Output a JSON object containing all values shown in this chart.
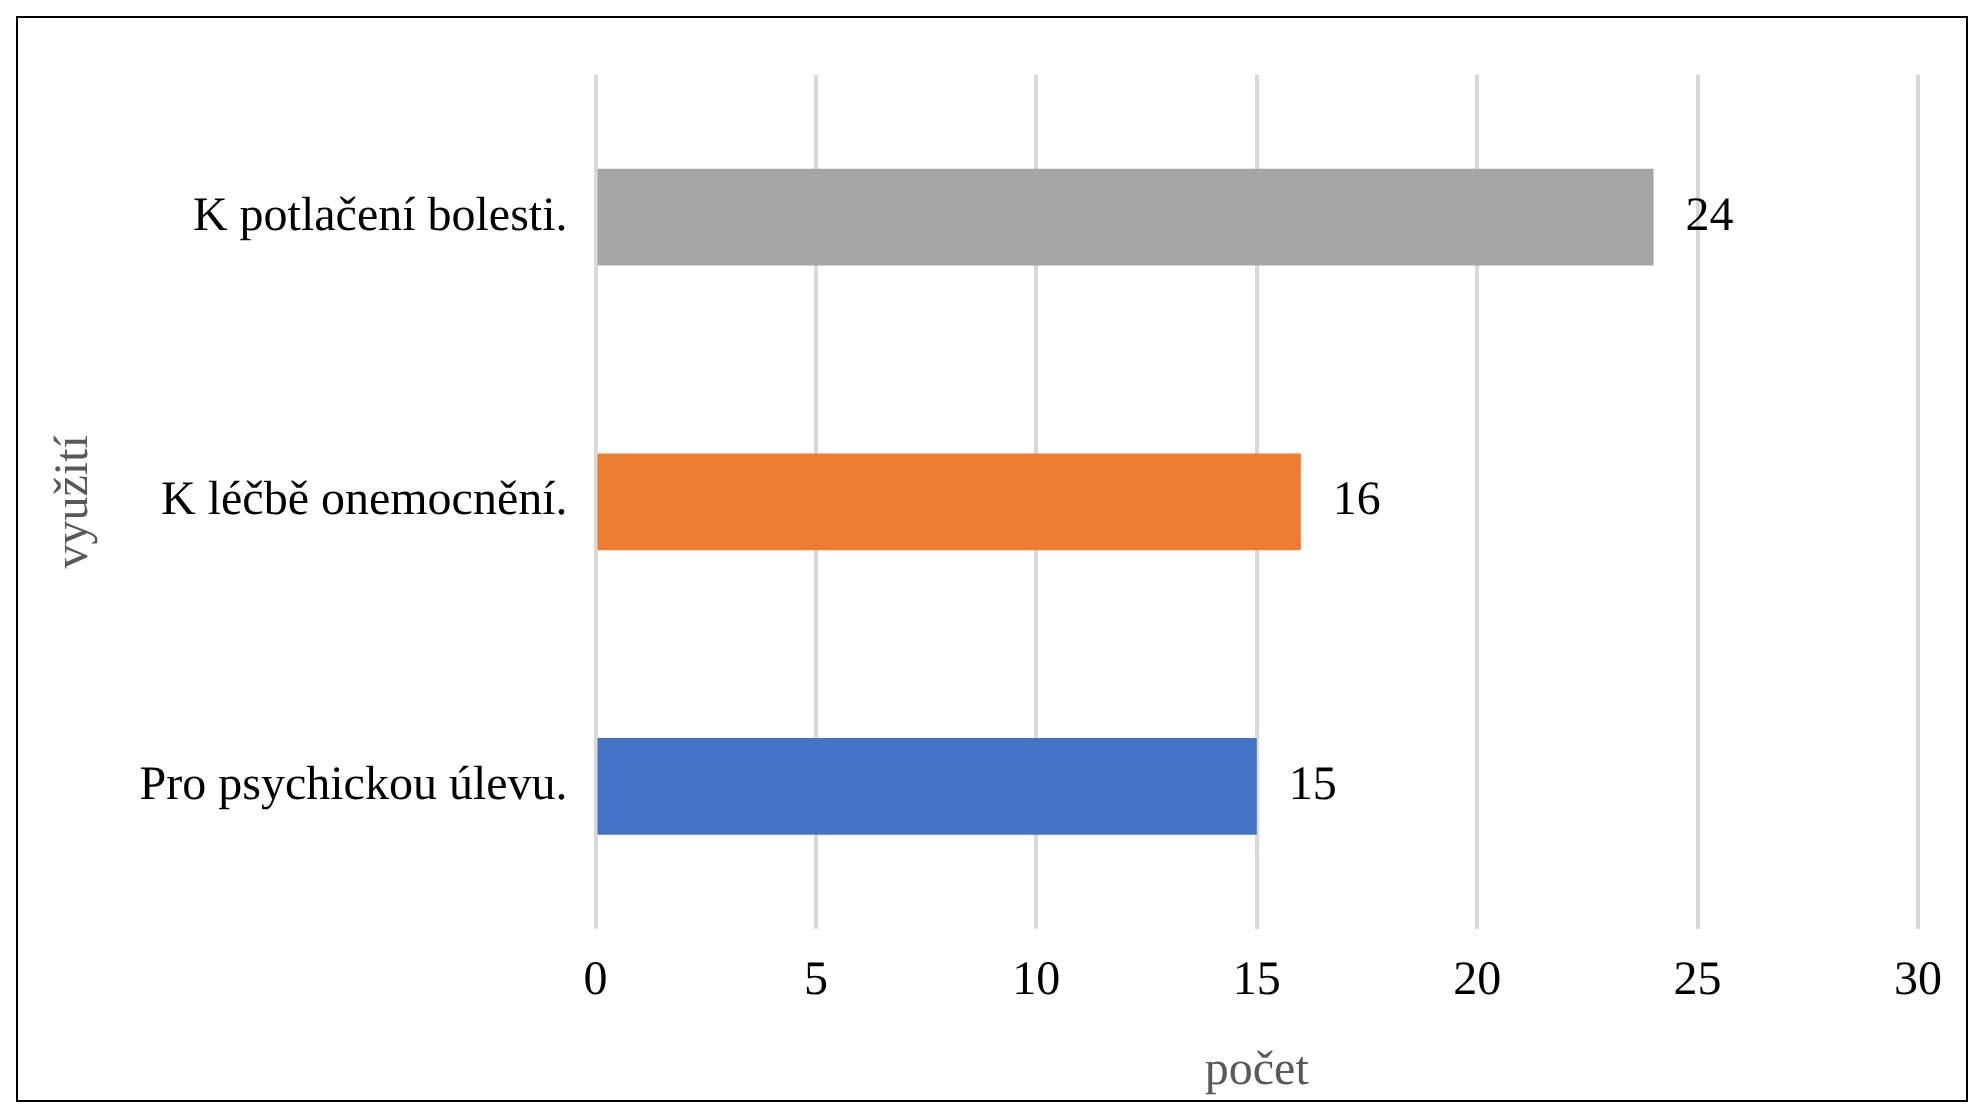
{
  "chart_data": {
    "type": "bar",
    "orientation": "horizontal",
    "categories": [
      "K potlačení bolesti.",
      "K léčbě onemocnění.",
      "Pro psychickou úlevu."
    ],
    "values": [
      24,
      16,
      15
    ],
    "colors": [
      "#a5a5a5",
      "#ed7d31",
      "#4472c4"
    ],
    "xlim": [
      0,
      30
    ],
    "xticks": [
      0,
      5,
      10,
      15,
      20,
      25,
      30
    ],
    "grid": "x",
    "data_labels": true,
    "legend": false,
    "xlabel": "počet",
    "ylabel": "využití"
  }
}
